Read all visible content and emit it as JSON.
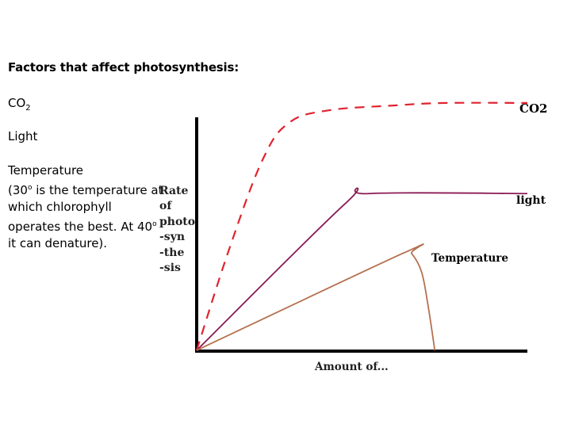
{
  "slide": {
    "title": "Factors that affect photosynthesis:",
    "co2_prefix": "CO",
    "co2_sub": "2",
    "light": "Light",
    "temperature": {
      "line1": "Temperature",
      "p1": "(30",
      "sup1": "o",
      "p2": " is the temperature at which chlorophyll operates the best. At 40",
      "sup2": "o",
      "p3": " it can denature)."
    }
  },
  "chart_data": {
    "type": "line",
    "title": "",
    "xlabel": "Amount of...",
    "ylabel_lines": [
      "Rate",
      "of",
      "photo",
      "-syn",
      "-the",
      "-sis"
    ],
    "xlim": [
      0,
      100
    ],
    "ylim": [
      0,
      100
    ],
    "axis_ticks": false,
    "grid": false,
    "legend": "labels at line ends",
    "series": [
      {
        "name": "CO2",
        "color": "#e0242f",
        "style": "dashed",
        "points": [
          [
            0,
            0
          ],
          [
            10,
            42
          ],
          [
            20,
            78
          ],
          [
            28,
            93
          ],
          [
            40,
            98
          ],
          [
            60,
            100
          ],
          [
            75,
            101
          ],
          [
            100,
            101
          ]
        ]
      },
      {
        "name": "light",
        "color": "#8b1a55",
        "style": "solid",
        "points": [
          [
            0,
            0
          ],
          [
            45,
            60
          ],
          [
            52,
            64
          ],
          [
            100,
            64
          ]
        ]
      },
      {
        "name": "Temperature",
        "color": "#b5714f",
        "style": "solid",
        "points": [
          [
            0,
            0
          ],
          [
            63,
            40
          ],
          [
            65,
            39.5
          ],
          [
            68,
            32
          ],
          [
            70,
            18
          ],
          [
            72,
            0
          ]
        ]
      }
    ]
  }
}
